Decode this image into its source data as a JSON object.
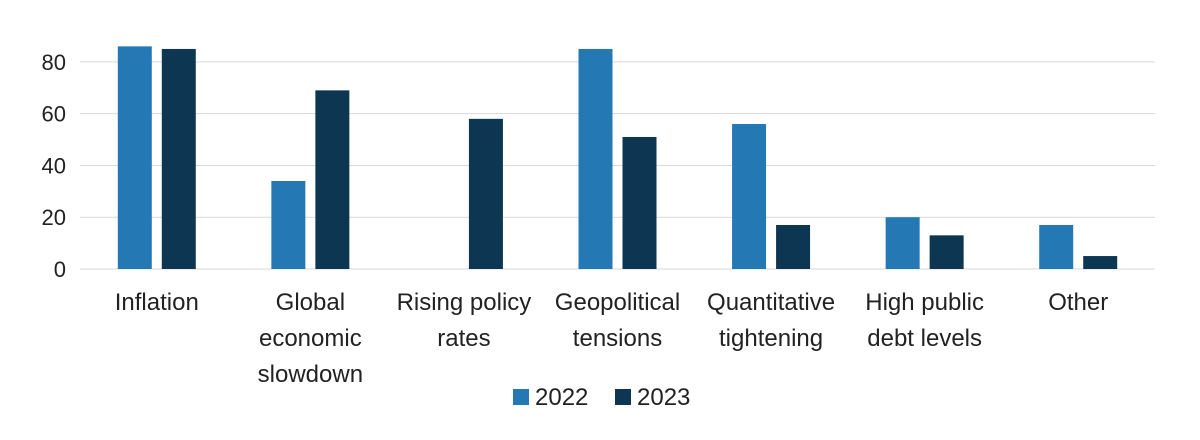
{
  "chart_data": {
    "type": "bar",
    "title": "",
    "xlabel": "",
    "ylabel": "",
    "categories": [
      [
        "Inflation"
      ],
      [
        "Global",
        "economic",
        "slowdown"
      ],
      [
        "Rising policy",
        "rates"
      ],
      [
        "Geopolitical",
        "tensions"
      ],
      [
        "Quantitative",
        "tightening"
      ],
      [
        "High public",
        "debt levels"
      ],
      [
        "Other"
      ]
    ],
    "series": [
      {
        "name": "2022",
        "color": "#2479b5",
        "values": [
          86,
          34,
          null,
          85,
          56,
          20,
          17
        ]
      },
      {
        "name": "2023",
        "color": "#0d3652",
        "values": [
          85,
          69,
          58,
          51,
          17,
          13,
          5
        ]
      }
    ],
    "yticks": [
      "0",
      "20",
      "40",
      "60",
      "80"
    ],
    "ylim": [
      0,
      90
    ],
    "grid": true,
    "legend_position": "bottom-center"
  }
}
